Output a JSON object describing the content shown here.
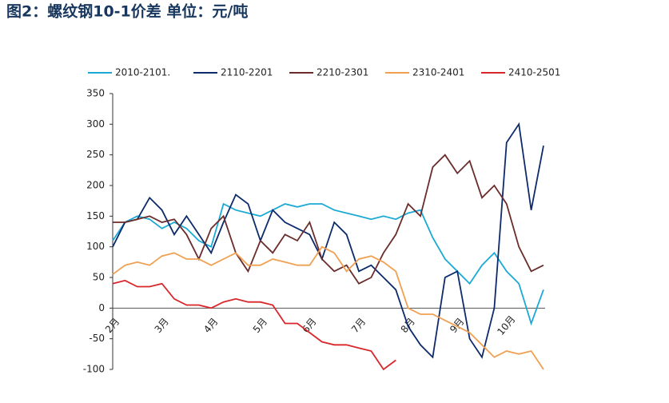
{
  "chart_data": {
    "type": "line",
    "title": "图2：螺纹钢10-1价差  单位：元/吨",
    "categories": [
      "2月",
      null,
      null,
      null,
      "3月",
      null,
      null,
      null,
      "4月",
      null,
      null,
      null,
      "5月",
      null,
      null,
      null,
      "6月",
      null,
      null,
      null,
      "7月",
      null,
      null,
      null,
      "8月",
      null,
      null,
      null,
      "9月",
      null,
      null,
      null,
      "10月",
      null,
      null,
      null
    ],
    "series": [
      {
        "name": "2010-2101.",
        "color": "#1ba9d6",
        "values": [
          110,
          140,
          150,
          145,
          130,
          140,
          130,
          110,
          100,
          170,
          160,
          155,
          150,
          160,
          170,
          165,
          170,
          170,
          160,
          155,
          150,
          145,
          150,
          145,
          155,
          160,
          115,
          80,
          60,
          40,
          70,
          90,
          60,
          40,
          -25,
          30
        ]
      },
      {
        "name": "2110-2201",
        "color": "#0d2b6b",
        "values": [
          100,
          140,
          145,
          180,
          160,
          120,
          150,
          120,
          90,
          140,
          185,
          170,
          110,
          160,
          140,
          130,
          120,
          80,
          140,
          120,
          60,
          70,
          50,
          30,
          -30,
          -60,
          -80,
          50,
          60,
          -50,
          -80,
          0,
          270,
          300,
          160,
          265
        ]
      },
      {
        "name": "2210-2301",
        "color": "#6b2c2c",
        "values": [
          140,
          140,
          145,
          150,
          140,
          145,
          120,
          80,
          130,
          150,
          90,
          60,
          110,
          90,
          120,
          110,
          140,
          80,
          60,
          70,
          40,
          50,
          90,
          120,
          170,
          150,
          230,
          250,
          220,
          240,
          180,
          200,
          170,
          100,
          60,
          70
        ]
      },
      {
        "name": "2310-2401",
        "color": "#f0a050",
        "values": [
          55,
          70,
          75,
          70,
          85,
          90,
          80,
          80,
          70,
          80,
          90,
          70,
          70,
          80,
          75,
          70,
          70,
          100,
          90,
          60,
          80,
          85,
          75,
          60,
          0,
          -10,
          -10,
          -20,
          -30,
          -40,
          -60,
          -80,
          -70,
          -75,
          -70,
          -100
        ]
      },
      {
        "name": "2410-2501",
        "color": "#d9262a",
        "values": [
          40,
          45,
          35,
          35,
          40,
          15,
          5,
          5,
          0,
          10,
          15,
          10,
          10,
          5,
          -25,
          -25,
          -40,
          -55,
          -60,
          -60,
          -65,
          -70,
          -100,
          -85,
          null,
          null,
          null,
          null,
          null,
          null,
          null,
          null,
          null,
          null,
          null,
          null
        ]
      }
    ],
    "ylim": [
      -100,
      350
    ],
    "yticks": [
      -100,
      -50,
      0,
      50,
      100,
      150,
      200,
      250,
      300,
      350
    ],
    "grid": false
  }
}
